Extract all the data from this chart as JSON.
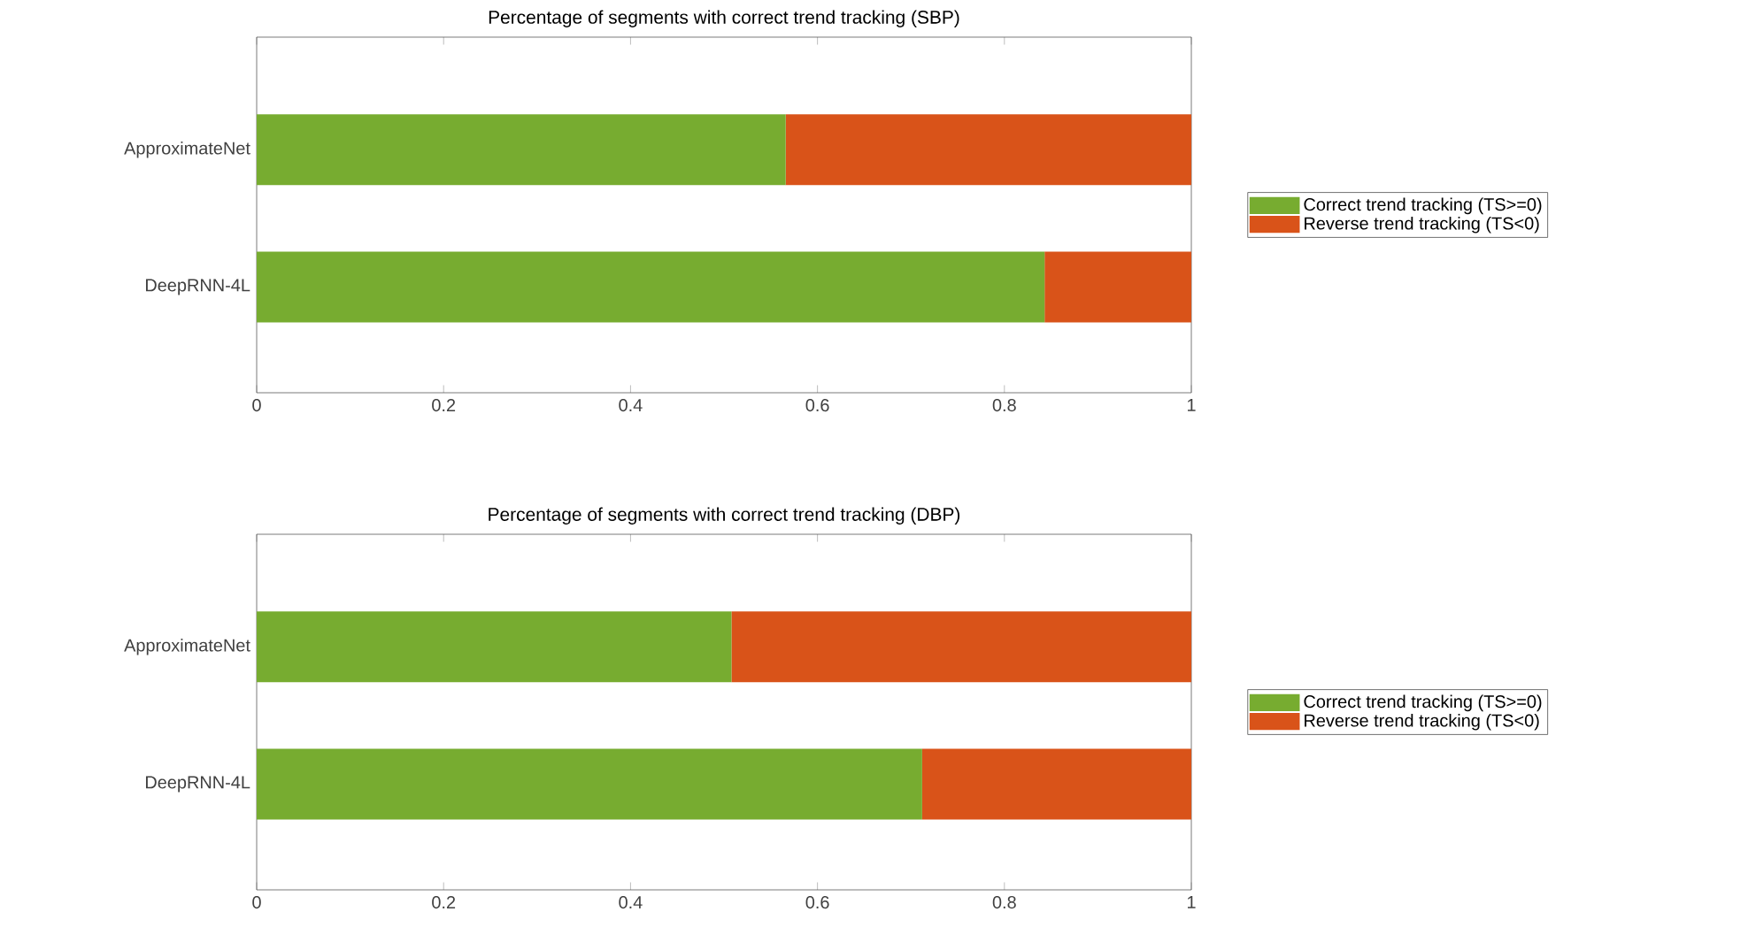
{
  "chart_data": [
    {
      "type": "bar",
      "orientation": "horizontal",
      "stacked": true,
      "title": "Percentage of segments with correct trend tracking (SBP)",
      "categories": [
        "ApproximateNet",
        "DeepRNN-4L"
      ],
      "series": [
        {
          "name": "Correct trend tracking (TS>=0)",
          "color": "#77ac30",
          "values": [
            0.566,
            0.843
          ]
        },
        {
          "name": "Reverse trend tracking (TS<0)",
          "color": "#d95319",
          "values": [
            0.434,
            0.157
          ]
        }
      ],
      "xlim": [
        0,
        1
      ],
      "xticks": [
        0,
        0.2,
        0.4,
        0.6,
        0.8,
        1
      ],
      "legend": "right",
      "grid": false
    },
    {
      "type": "bar",
      "orientation": "horizontal",
      "stacked": true,
      "title": "Percentage of segments with correct trend tracking (DBP)",
      "categories": [
        "ApproximateNet",
        "DeepRNN-4L"
      ],
      "series": [
        {
          "name": "Correct trend tracking (TS>=0)",
          "color": "#77ac30",
          "values": [
            0.508,
            0.712
          ]
        },
        {
          "name": "Reverse trend tracking (TS<0)",
          "color": "#d95319",
          "values": [
            0.492,
            0.288
          ]
        }
      ],
      "xlim": [
        0,
        1
      ],
      "xticks": [
        0,
        0.2,
        0.4,
        0.6,
        0.8,
        1
      ],
      "legend": "right",
      "grid": false
    }
  ]
}
